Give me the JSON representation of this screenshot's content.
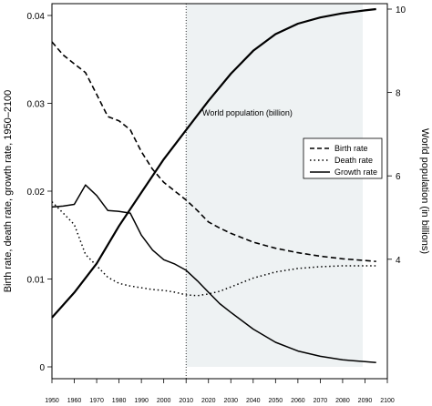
{
  "chart_data": {
    "type": "line",
    "ylabel": "Birth rate, death rate, growth rate, 1950–2100",
    "y2label": "World population (in billions)",
    "annotation": "World population (billion)",
    "projection_start_year": 2010,
    "xlim": [
      1950,
      2100
    ],
    "ylim": [
      0,
      0.04
    ],
    "y2lim": [
      3.5,
      10
    ],
    "x_ticks": [
      1950,
      1960,
      1970,
      1980,
      1990,
      2000,
      2010,
      2020,
      2030,
      2040,
      2050,
      2060,
      2070,
      2080,
      2090,
      2100
    ],
    "y_ticks": [
      0,
      0.01,
      0.02,
      0.03,
      0.04
    ],
    "y_tick_labels": [
      "0",
      "0.01",
      "0.02",
      "0.03",
      "0.04"
    ],
    "y2_ticks": [
      4,
      6,
      8,
      10
    ],
    "y2_tick_labels": [
      "4",
      "6",
      "8",
      "10"
    ],
    "legend": {
      "position": "right",
      "entries": [
        "Birth rate",
        "Death rate",
        "Growth rate"
      ]
    },
    "series": [
      {
        "name": "Birth rate",
        "axis": "left",
        "style": "dashed",
        "x": [
          1950,
          1955,
          1960,
          1965,
          1970,
          1975,
          1980,
          1985,
          1990,
          1995,
          2000,
          2005,
          2010,
          2015,
          2020,
          2025,
          2030,
          2040,
          2050,
          2060,
          2070,
          2080,
          2090,
          2095
        ],
        "y": [
          0.037,
          0.0355,
          0.0345,
          0.0335,
          0.031,
          0.0285,
          0.028,
          0.027,
          0.0245,
          0.0225,
          0.021,
          0.02,
          0.019,
          0.0178,
          0.0165,
          0.0158,
          0.0152,
          0.0142,
          0.0135,
          0.013,
          0.0126,
          0.0123,
          0.0121,
          0.012
        ]
      },
      {
        "name": "Death rate",
        "axis": "left",
        "style": "dotted",
        "x": [
          1950,
          1955,
          1960,
          1965,
          1970,
          1975,
          1980,
          1985,
          1990,
          1995,
          2000,
          2005,
          2010,
          2015,
          2020,
          2025,
          2030,
          2040,
          2050,
          2060,
          2070,
          2080,
          2090,
          2095
        ],
        "y": [
          0.0188,
          0.0175,
          0.0162,
          0.0128,
          0.0115,
          0.0102,
          0.0095,
          0.0092,
          0.009,
          0.0088,
          0.0087,
          0.0085,
          0.0082,
          0.0081,
          0.0083,
          0.0086,
          0.0091,
          0.0101,
          0.0108,
          0.0112,
          0.0114,
          0.0115,
          0.0115,
          0.0115
        ]
      },
      {
        "name": "Growth rate",
        "axis": "left",
        "style": "solid",
        "x": [
          1950,
          1955,
          1960,
          1965,
          1970,
          1975,
          1980,
          1985,
          1990,
          1995,
          2000,
          2005,
          2010,
          2015,
          2020,
          2025,
          2030,
          2040,
          2050,
          2060,
          2070,
          2080,
          2090,
          2095
        ],
        "y": [
          0.0182,
          0.0183,
          0.0185,
          0.0207,
          0.0195,
          0.0178,
          0.0177,
          0.0175,
          0.015,
          0.0133,
          0.0122,
          0.0117,
          0.011,
          0.0098,
          0.0085,
          0.0072,
          0.0062,
          0.0043,
          0.0028,
          0.0018,
          0.0012,
          0.0008,
          0.0006,
          0.0005
        ]
      },
      {
        "name": "World population (billion)",
        "axis": "right",
        "style": "solid-thick",
        "x": [
          1950,
          1960,
          1970,
          1980,
          1990,
          2000,
          2010,
          2020,
          2030,
          2040,
          2050,
          2060,
          2070,
          2080,
          2090,
          2095
        ],
        "y": [
          2.6,
          3.2,
          3.9,
          4.8,
          5.6,
          6.4,
          7.1,
          7.8,
          8.45,
          9.0,
          9.4,
          9.65,
          9.8,
          9.9,
          9.97,
          10.0
        ]
      }
    ]
  }
}
